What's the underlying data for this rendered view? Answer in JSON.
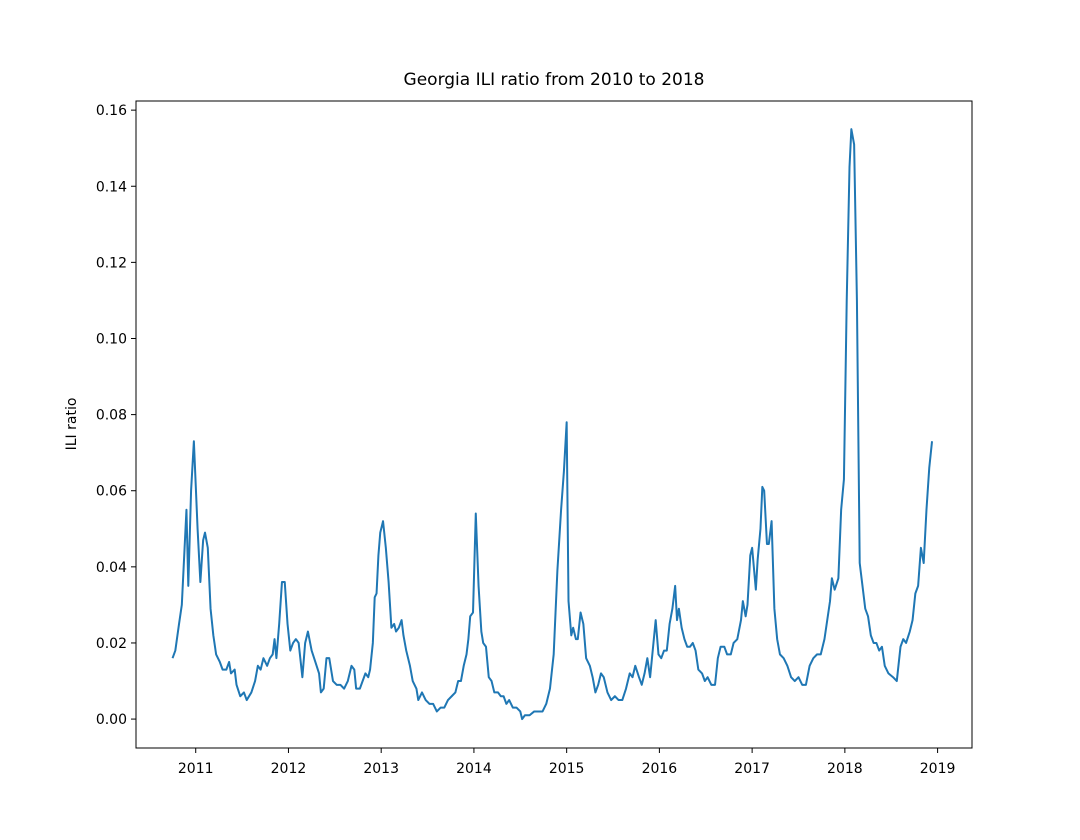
{
  "chart_data": {
    "type": "line",
    "title": "Georgia ILI ratio from 2010 to 2018",
    "y_label": "ILI ratio",
    "color": "#1f77b4",
    "xlim": [
      2010.356,
      2019.371
    ],
    "xticks": [
      2011,
      2012,
      2013,
      2014,
      2015,
      2016,
      2017,
      2018,
      2019
    ],
    "ylim": [
      -0.0076,
      0.1624
    ],
    "yticks": [
      {
        "value": 0,
        "label": "0.00"
      },
      0.02,
      0.04,
      0.06,
      0.08,
      {
        "value": 0.1,
        "label": "0.10"
      },
      0.12,
      0.14,
      0.16
    ],
    "x": [
      2010.75,
      2010.78,
      2010.82,
      2010.85,
      2010.88,
      2010.9,
      2010.92,
      2010.95,
      2010.98,
      2011.02,
      2011.05,
      2011.08,
      2011.1,
      2011.13,
      2011.16,
      2011.19,
      2011.22,
      2011.26,
      2011.29,
      2011.33,
      2011.36,
      2011.38,
      2011.42,
      2011.44,
      2011.48,
      2011.52,
      2011.55,
      2011.6,
      2011.64,
      2011.67,
      2011.7,
      2011.73,
      2011.77,
      2011.8,
      2011.83,
      2011.85,
      2011.87,
      2011.9,
      2011.93,
      2011.96,
      2011.99,
      2012.02,
      2012.05,
      2012.08,
      2012.11,
      2012.15,
      2012.18,
      2012.21,
      2012.25,
      2012.29,
      2012.33,
      2012.35,
      2012.38,
      2012.41,
      2012.44,
      2012.48,
      2012.52,
      2012.56,
      2012.6,
      2012.64,
      2012.68,
      2012.71,
      2012.73,
      2012.77,
      2012.8,
      2012.83,
      2012.86,
      2012.88,
      2012.91,
      2012.93,
      2012.95,
      2012.97,
      2012.99,
      2013.02,
      2013.05,
      2013.08,
      2013.11,
      2013.14,
      2013.16,
      2013.19,
      2013.22,
      2013.24,
      2013.27,
      2013.31,
      2013.34,
      2013.38,
      2013.4,
      2013.44,
      2013.48,
      2013.52,
      2013.56,
      2013.6,
      2013.64,
      2013.68,
      2013.72,
      2013.76,
      2013.8,
      2013.83,
      2013.86,
      2013.89,
      2013.92,
      2013.94,
      2013.96,
      2013.99,
      2014.02,
      2014.05,
      2014.08,
      2014.1,
      2014.13,
      2014.16,
      2014.19,
      2014.22,
      2014.26,
      2014.29,
      2014.32,
      2014.35,
      2014.38,
      2014.42,
      2014.46,
      2014.5,
      2014.52,
      2014.55,
      2014.6,
      2014.65,
      2014.7,
      2014.74,
      2014.78,
      2014.82,
      2014.86,
      2014.9,
      2014.94,
      2014.97,
      2015.0,
      2015.02,
      2015.05,
      2015.07,
      2015.1,
      2015.12,
      2015.15,
      2015.18,
      2015.21,
      2015.25,
      2015.28,
      2015.31,
      2015.34,
      2015.37,
      2015.4,
      2015.44,
      2015.48,
      2015.52,
      2015.56,
      2015.6,
      2015.64,
      2015.68,
      2015.71,
      2015.74,
      2015.78,
      2015.81,
      2015.84,
      2015.87,
      2015.9,
      2015.94,
      2015.96,
      2015.99,
      2016.02,
      2016.05,
      2016.08,
      2016.11,
      2016.14,
      2016.17,
      2016.19,
      2016.21,
      2016.24,
      2016.27,
      2016.3,
      2016.33,
      2016.36,
      2016.39,
      2016.42,
      2016.46,
      2016.49,
      2016.52,
      2016.56,
      2016.6,
      2016.63,
      2016.66,
      2016.7,
      2016.73,
      2016.77,
      2016.8,
      2016.84,
      2016.88,
      2016.9,
      2016.93,
      2016.95,
      2016.98,
      2017.0,
      2017.04,
      2017.06,
      2017.09,
      2017.11,
      2017.13,
      2017.16,
      2017.18,
      2017.21,
      2017.24,
      2017.27,
      2017.3,
      2017.34,
      2017.38,
      2017.42,
      2017.46,
      2017.5,
      2017.54,
      2017.58,
      2017.62,
      2017.66,
      2017.7,
      2017.74,
      2017.78,
      2017.81,
      2017.84,
      2017.86,
      2017.89,
      2017.93,
      2017.96,
      2017.99,
      2018.02,
      2018.05,
      2018.07,
      2018.1,
      2018.13,
      2018.16,
      2018.19,
      2018.22,
      2018.25,
      2018.28,
      2018.31,
      2018.34,
      2018.37,
      2018.4,
      2018.43,
      2018.47,
      2018.52,
      2018.56,
      2018.6,
      2018.63,
      2018.66,
      2018.7,
      2018.73,
      2018.76,
      2018.79,
      2018.82,
      2018.85,
      2018.88,
      2018.91,
      2018.94
    ],
    "values": [
      0.016,
      0.018,
      0.025,
      0.03,
      0.045,
      0.055,
      0.035,
      0.06,
      0.073,
      0.05,
      0.036,
      0.047,
      0.049,
      0.045,
      0.029,
      0.022,
      0.017,
      0.015,
      0.013,
      0.013,
      0.015,
      0.012,
      0.013,
      0.009,
      0.006,
      0.007,
      0.005,
      0.007,
      0.01,
      0.014,
      0.013,
      0.016,
      0.014,
      0.016,
      0.017,
      0.021,
      0.016,
      0.025,
      0.036,
      0.036,
      0.025,
      0.018,
      0.02,
      0.021,
      0.02,
      0.011,
      0.02,
      0.023,
      0.018,
      0.015,
      0.012,
      0.007,
      0.008,
      0.016,
      0.016,
      0.01,
      0.009,
      0.009,
      0.008,
      0.01,
      0.014,
      0.013,
      0.008,
      0.008,
      0.01,
      0.012,
      0.011,
      0.013,
      0.02,
      0.032,
      0.033,
      0.043,
      0.049,
      0.052,
      0.045,
      0.036,
      0.024,
      0.025,
      0.023,
      0.024,
      0.026,
      0.022,
      0.018,
      0.014,
      0.01,
      0.008,
      0.005,
      0.007,
      0.005,
      0.004,
      0.004,
      0.002,
      0.003,
      0.003,
      0.005,
      0.006,
      0.007,
      0.01,
      0.01,
      0.014,
      0.017,
      0.021,
      0.027,
      0.028,
      0.054,
      0.035,
      0.023,
      0.02,
      0.019,
      0.011,
      0.01,
      0.007,
      0.007,
      0.006,
      0.006,
      0.004,
      0.005,
      0.003,
      0.003,
      0.002,
      0.0,
      0.001,
      0.001,
      0.002,
      0.002,
      0.002,
      0.004,
      0.008,
      0.017,
      0.039,
      0.055,
      0.065,
      0.078,
      0.031,
      0.022,
      0.024,
      0.021,
      0.021,
      0.028,
      0.025,
      0.016,
      0.014,
      0.011,
      0.007,
      0.009,
      0.012,
      0.011,
      0.007,
      0.005,
      0.006,
      0.005,
      0.005,
      0.008,
      0.012,
      0.011,
      0.014,
      0.011,
      0.009,
      0.012,
      0.016,
      0.011,
      0.021,
      0.026,
      0.017,
      0.016,
      0.018,
      0.018,
      0.025,
      0.029,
      0.035,
      0.026,
      0.029,
      0.024,
      0.021,
      0.019,
      0.019,
      0.02,
      0.018,
      0.013,
      0.012,
      0.01,
      0.011,
      0.009,
      0.009,
      0.016,
      0.019,
      0.019,
      0.017,
      0.017,
      0.02,
      0.021,
      0.026,
      0.031,
      0.027,
      0.03,
      0.043,
      0.045,
      0.034,
      0.042,
      0.05,
      0.061,
      0.06,
      0.046,
      0.046,
      0.052,
      0.029,
      0.021,
      0.017,
      0.016,
      0.014,
      0.011,
      0.01,
      0.011,
      0.009,
      0.009,
      0.014,
      0.016,
      0.017,
      0.017,
      0.021,
      0.026,
      0.031,
      0.037,
      0.034,
      0.037,
      0.055,
      0.063,
      0.11,
      0.145,
      0.155,
      0.151,
      0.11,
      0.041,
      0.035,
      0.029,
      0.027,
      0.022,
      0.02,
      0.02,
      0.018,
      0.019,
      0.014,
      0.012,
      0.011,
      0.01,
      0.019,
      0.021,
      0.02,
      0.023,
      0.026,
      0.033,
      0.035,
      0.045,
      0.041,
      0.055,
      0.066,
      0.073
    ]
  }
}
